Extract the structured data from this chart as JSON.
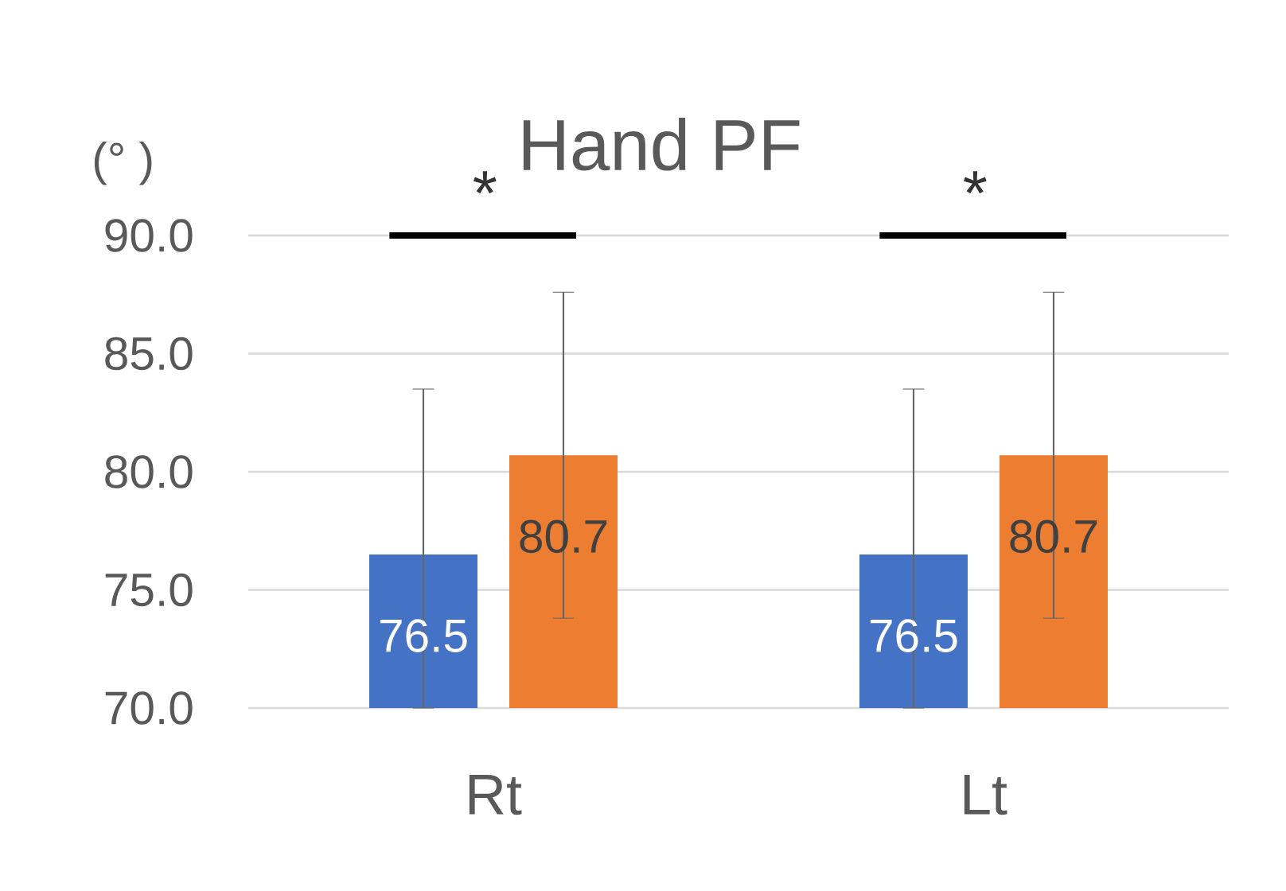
{
  "chart_data": {
    "type": "bar",
    "title": "Hand PF",
    "ylabel": "(° )",
    "categories": [
      "Rt",
      "Lt"
    ],
    "series": [
      {
        "color": "#4472c4",
        "values": [
          76.5,
          76.5
        ],
        "errors": [
          [
            70,
            83.5
          ],
          [
            70,
            83.5
          ]
        ]
      },
      {
        "color": "#ed7d31",
        "values": [
          80.7,
          80.7
        ],
        "errors": [
          6.9,
          6.9
        ]
      }
    ],
    "ylim": [
      70,
      90
    ],
    "yticks": [
      {
        "value": 70,
        "label": "70.0"
      },
      {
        "value": 75,
        "label": "75.0"
      },
      {
        "value": 80,
        "label": "80.0"
      },
      {
        "value": 85,
        "label": "85.0"
      },
      {
        "value": 90,
        "label": "90.0"
      }
    ],
    "grid": "y",
    "data_labels": true,
    "annotations": [
      "*",
      "*"
    ]
  }
}
